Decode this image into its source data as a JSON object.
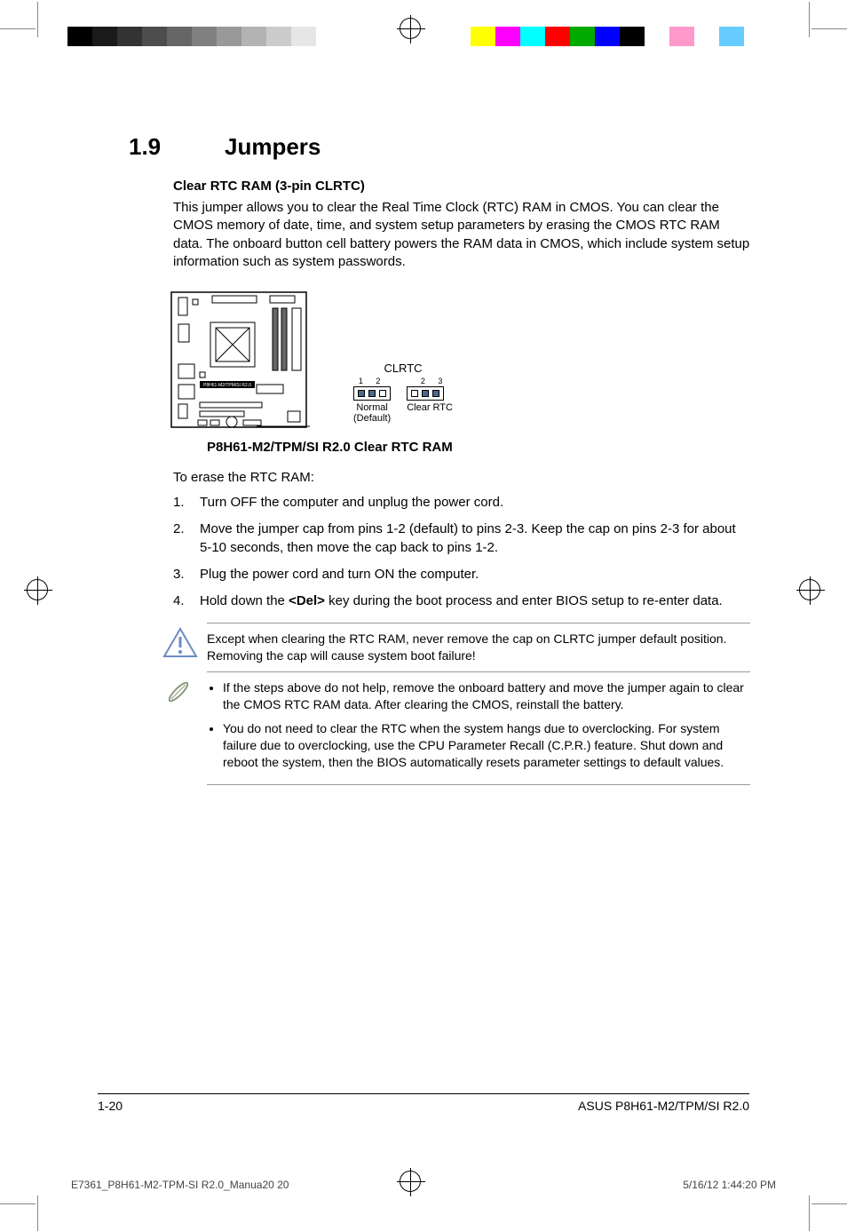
{
  "printerBar": {
    "graySwatches": [
      "#000000",
      "#1a1a1a",
      "#333333",
      "#4d4d4d",
      "#666666",
      "#808080",
      "#999999",
      "#b3b3b3",
      "#cccccc",
      "#e6e6e6",
      "#ffffff"
    ],
    "colorSwatches": [
      "#ffff00",
      "#ff00ff",
      "#00ffff",
      "#ff0000",
      "#00aa00",
      "#0000ff",
      "#000000",
      "#ffffff",
      "#ff99cc",
      "#ffffff",
      "#66ccff"
    ]
  },
  "heading": {
    "number": "1.9",
    "title": "Jumpers"
  },
  "subtitle": "Clear RTC RAM (3-pin CLRTC)",
  "intro": "This jumper allows you to clear the Real Time Clock (RTC) RAM in CMOS. You can clear the CMOS memory of date, time, and system setup parameters by erasing the CMOS RTC RAM data. The onboard button cell battery powers the RAM data in CMOS, which include system setup information such as system passwords.",
  "diagram": {
    "clrtcLabel": "CLRTC",
    "normal": {
      "pins": "1  2",
      "label1": "Normal",
      "label2": "(Default)"
    },
    "clear": {
      "pins": "2  3",
      "label": "Clear RTC"
    },
    "caption": "P8H61-M2/TPM/SI R2.0 Clear RTC RAM",
    "boardLabel": "P8H61-M2/TPM/SI R2.0"
  },
  "eraseHeading": "To erase the RTC RAM:",
  "steps": [
    "Turn OFF the computer and unplug the power cord.",
    "Move the jumper cap from pins 1-2 (default) to pins 2-3. Keep the cap on pins 2-3 for about 5-10 seconds, then move the cap back to pins 1-2.",
    "Plug the power cord and turn ON the computer.",
    "Hold down the <Del> key during the boot process and enter BIOS setup to re-enter data."
  ],
  "step4_prefix": "Hold down the ",
  "step4_key": "<Del>",
  "step4_suffix": " key during the boot process and enter BIOS setup to re-enter data.",
  "warning": "Except when clearing the RTC RAM, never remove the cap on CLRTC jumper default position. Removing the cap will cause system boot failure!",
  "notes": [
    "If the steps above do not help, remove the onboard battery and move the jumper again to clear the CMOS RTC RAM data. After clearing the CMOS, reinstall the battery.",
    "You do not need to clear the RTC when the system hangs due to overclocking. For system failure due to overclocking, use the CPU Parameter Recall (C.P.R.) feature. Shut down and reboot the system, then the BIOS automatically resets parameter settings to default values."
  ],
  "footer": {
    "pageNum": "1-20",
    "product": "ASUS P8H61-M2/TPM/SI R2.0"
  },
  "printFooter": {
    "file": "E7361_P8H61-M2-TPM-SI R2.0_Manua20   20",
    "datetime": "5/16/12   1:44:20 PM"
  },
  "colors": {
    "warningOutline": "#6b8bc4",
    "noteOutline": "#8a9a7a",
    "pinFill": "#4a6a8a"
  }
}
